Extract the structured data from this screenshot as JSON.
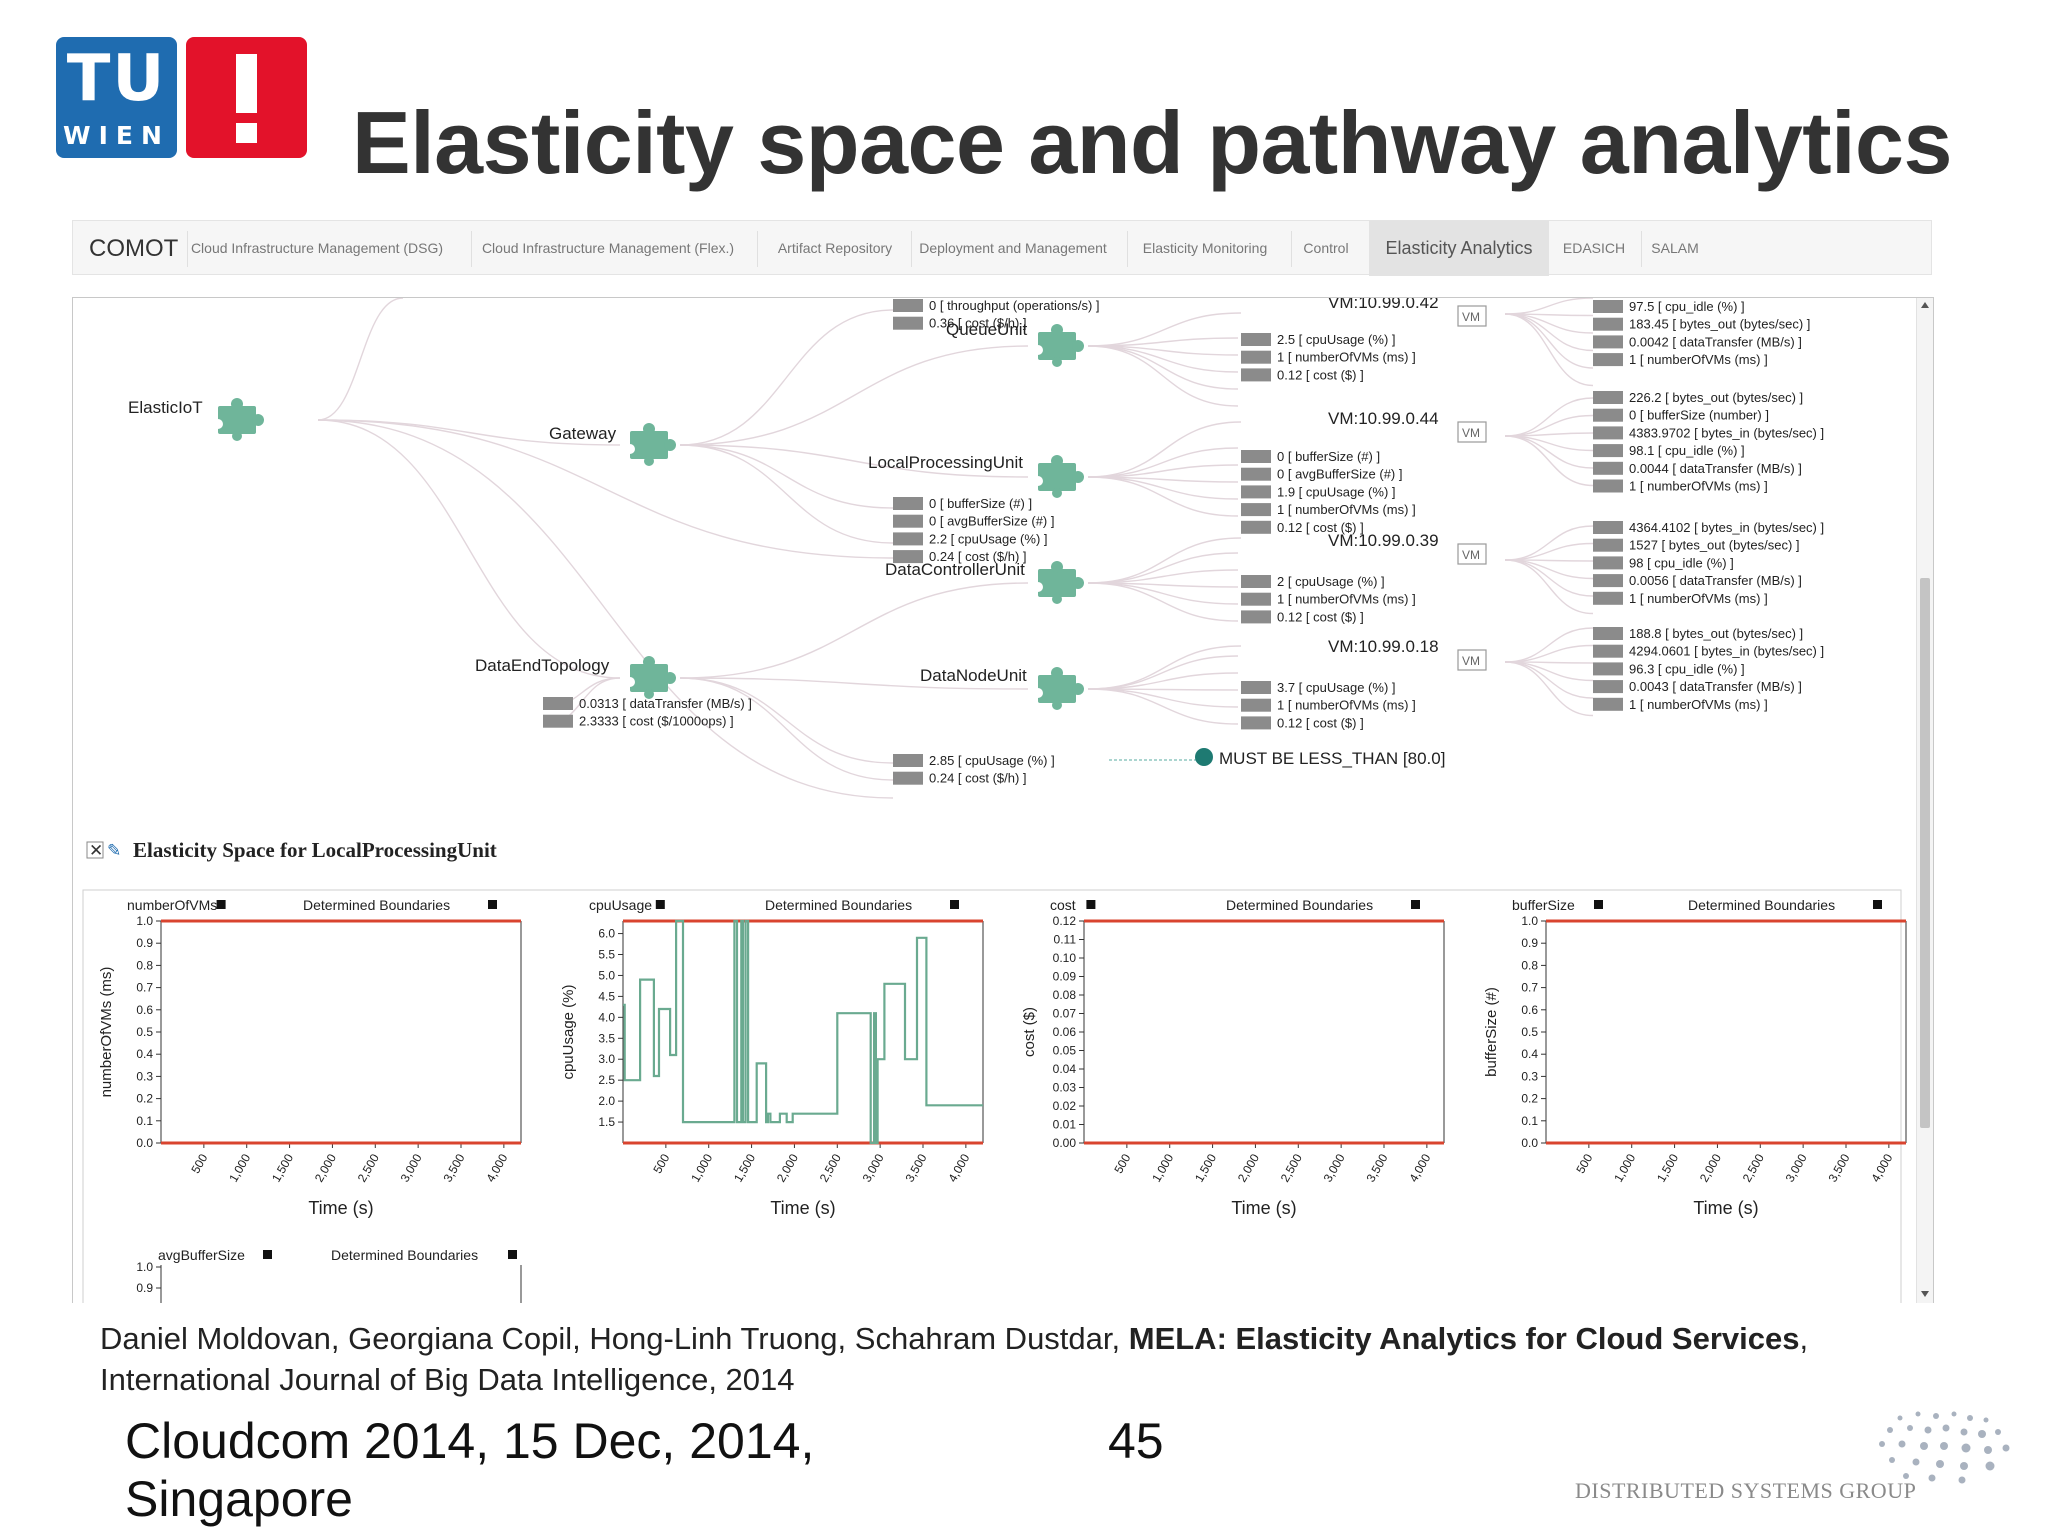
{
  "logo": {
    "tu": "TU",
    "wien": "WIEN",
    "bang": "!"
  },
  "slide_title": "Elasticity space and pathway analytics",
  "nav": {
    "brand": "COMOT",
    "tabs": [
      {
        "label": "Cloud Infrastructure Management (DSG)",
        "active": false
      },
      {
        "label": "Cloud Infrastructure Management (Flex.)",
        "active": false
      },
      {
        "label": "Artifact Repository",
        "active": false
      },
      {
        "label": "Deployment and Management",
        "active": false
      },
      {
        "label": "Elasticity Monitoring",
        "active": false
      },
      {
        "label": "Control",
        "active": false
      },
      {
        "label": "Elasticity Analytics",
        "active": true
      },
      {
        "label": "EDASICH",
        "active": false
      },
      {
        "label": "SALAM",
        "active": false
      }
    ]
  },
  "tree": {
    "nodes": {
      "elasticiot": "ElasticIoT",
      "gateway": "Gateway",
      "dataendtopology": "DataEndTopology",
      "queueunit": "QueueUnit",
      "localprocessingunit": "LocalProcessingUnit",
      "datacontrollerunit": "DataControllerUnit",
      "datanodeunit": "DataNodeUnit"
    },
    "vm_badge": "VM",
    "vms": [
      "VM:10.99.0.42",
      "VM:10.99.0.44",
      "VM:10.99.0.39",
      "VM:10.99.0.18"
    ],
    "metrics": {
      "gateway_top": [
        "0 [ throughput (operations/s) ]",
        "0.36 [ cost ($/h) ]"
      ],
      "local": [
        "0 [ bufferSize (#) ]",
        "0 [ avgBufferSize (#) ]",
        "2.2 [ cpuUsage (%) ]",
        "0.24 [ cost ($/h) ]"
      ],
      "dataend": [
        "0.0313 [ dataTransfer (MB/s) ]",
        "2.3333 [ cost ($/1000ops) ]"
      ],
      "datanode": [
        "2.85 [ cpuUsage (%) ]",
        "0.24 [ cost ($/h) ]"
      ],
      "queue_vm": [
        "2.5 [ cpuUsage (%) ]",
        "1 [ numberOfVMs (ms) ]",
        "0.12 [ cost ($) ]"
      ],
      "local_vm": [
        "0 [ bufferSize (#) ]",
        "0 [ avgBufferSize (#) ]",
        "1.9 [ cpuUsage (%) ]",
        "1 [ numberOfVMs (ms) ]",
        "0.12 [ cost ($) ]"
      ],
      "dc_vm": [
        "2 [ cpuUsage (%) ]",
        "1 [ numberOfVMs (ms) ]",
        "0.12 [ cost ($) ]"
      ],
      "dn_vm": [
        "3.7 [ cpuUsage (%) ]",
        "1 [ numberOfVMs (ms) ]",
        "0.12 [ cost ($) ]"
      ],
      "vm42": [
        "97.5 [ cpu_idle (%) ]",
        "183.45 [ bytes_out (bytes/sec) ]",
        "0.0042 [ dataTransfer (MB/s) ]",
        "1 [ numberOfVMs (ms) ]"
      ],
      "vm44": [
        "226.2 [ bytes_out (bytes/sec) ]",
        "0 [ bufferSize (number) ]",
        "4383.9702 [ bytes_in (bytes/sec) ]",
        "98.1 [ cpu_idle (%) ]",
        "0.0044 [ dataTransfer (MB/s) ]",
        "1 [ numberOfVMs (ms) ]"
      ],
      "vm39": [
        "4364.4102 [ bytes_in (bytes/sec) ]",
        "1527 [ bytes_out (bytes/sec) ]",
        "98 [ cpu_idle (%) ]",
        "0.0056 [ dataTransfer (MB/s) ]",
        "1 [ numberOfVMs (ms) ]"
      ],
      "vm18": [
        "188.8 [ bytes_out (bytes/sec) ]",
        "4294.0601 [ bytes_in (bytes/sec) ]",
        "96.3 [ cpu_idle (%) ]",
        "0.0043 [ dataTransfer (MB/s) ]",
        "1 [ numberOfVMs (ms) ]"
      ]
    },
    "requirement": "MUST BE LESS_THAN [80.0]"
  },
  "space": {
    "close_icon": "✕",
    "edit_icon": "✎",
    "title": "Elasticity Space for LocalProcessingUnit",
    "boundaries_label": "Determined Boundaries"
  },
  "chart_data": [
    {
      "type": "line",
      "name": "numberOfVMs",
      "ylabel": "numberOfVMs (ms)",
      "xlabel": "Time (s)",
      "ylim": [
        0,
        1.0
      ],
      "yticks": [
        "0.0",
        "0.1",
        "0.2",
        "0.3",
        "0.4",
        "0.5",
        "0.6",
        "0.7",
        "0.8",
        "0.9",
        "1.0"
      ],
      "xticks": [
        "500",
        "1,000",
        "1,500",
        "2,000",
        "2,500",
        "3,000",
        "3,500",
        "4,000"
      ],
      "upper_boundary": 1.0,
      "lower_boundary": 0.0,
      "x": [],
      "y": []
    },
    {
      "type": "line",
      "name": "cpuUsage",
      "ylabel": "cpuUsage (%)",
      "xlabel": "Time (s)",
      "ylim": [
        1.0,
        6.3
      ],
      "yticks": [
        "1.5",
        "2.0",
        "2.5",
        "3.0",
        "3.5",
        "4.0",
        "4.5",
        "5.0",
        "5.5",
        "6.0"
      ],
      "xticks": [
        "500",
        "1,000",
        "1,500",
        "2,000",
        "2,500",
        "3,000",
        "3,500",
        "4,000"
      ],
      "upper_boundary": 6.3,
      "lower_boundary": 1.0,
      "x": [
        0,
        20,
        20,
        200,
        200,
        360,
        360,
        420,
        420,
        550,
        550,
        620,
        620,
        700,
        700,
        740,
        740,
        1300,
        1300,
        1330,
        1330,
        1380,
        1380,
        1400,
        1400,
        1430,
        1430,
        1460,
        1460,
        1560,
        1560,
        1670,
        1670,
        1690,
        1690,
        1720,
        1720,
        1830,
        1830,
        1910,
        1910,
        1980,
        1980,
        2030,
        2030,
        2110,
        2110,
        2500,
        2500,
        2890,
        2890,
        2930,
        2930,
        2950,
        2950,
        2970,
        2970,
        3000,
        3000,
        3050,
        3050,
        3290,
        3290,
        3430,
        3430,
        3540,
        3540,
        3680,
        3680,
        3800,
        3800,
        3880,
        3880,
        4200
      ],
      "y": [
        4.3,
        4.3,
        2.5,
        2.5,
        4.9,
        4.9,
        2.6,
        2.6,
        4.2,
        4.2,
        3.1,
        3.1,
        6.3,
        6.3,
        1.5,
        1.5,
        1.5,
        1.5,
        6.3,
        6.3,
        1.5,
        1.5,
        6.3,
        6.3,
        1.5,
        1.5,
        6.3,
        6.3,
        1.5,
        1.5,
        2.9,
        2.9,
        1.5,
        1.5,
        1.7,
        1.7,
        1.5,
        1.5,
        1.7,
        1.7,
        1.5,
        1.5,
        1.7,
        1.7,
        1.7,
        1.7,
        1.7,
        1.7,
        4.1,
        4.1,
        1.0,
        1.0,
        4.1,
        4.1,
        1.0,
        1.0,
        3.0,
        3.0,
        3.0,
        3.0,
        4.8,
        4.8,
        3.0,
        3.0,
        5.9,
        5.9,
        1.9,
        1.9,
        1.9,
        1.9,
        1.9,
        1.9,
        1.9,
        1.9
      ]
    },
    {
      "type": "line",
      "name": "cost",
      "ylabel": "cost ($)",
      "xlabel": "Time (s)",
      "ylim": [
        0,
        0.12
      ],
      "yticks": [
        "0.00",
        "0.01",
        "0.02",
        "0.03",
        "0.04",
        "0.05",
        "0.06",
        "0.07",
        "0.08",
        "0.09",
        "0.10",
        "0.11",
        "0.12"
      ],
      "xticks": [
        "500",
        "1,000",
        "1,500",
        "2,000",
        "2,500",
        "3,000",
        "3,500",
        "4,000"
      ],
      "upper_boundary": 0.12,
      "lower_boundary": 0.0,
      "x": [],
      "y": []
    },
    {
      "type": "line",
      "name": "bufferSize",
      "ylabel": "bufferSize (#)",
      "xlabel": "Time (s)",
      "ylim": [
        0,
        1.0
      ],
      "yticks": [
        "0.0",
        "0.1",
        "0.2",
        "0.3",
        "0.4",
        "0.5",
        "0.6",
        "0.7",
        "0.8",
        "0.9",
        "1.0"
      ],
      "xticks": [
        "500",
        "1,000",
        "1,500",
        "2,000",
        "2,500",
        "3,000",
        "3,500",
        "4,000"
      ],
      "upper_boundary": 1.0,
      "lower_boundary": 0.0,
      "x": [],
      "y": []
    },
    {
      "type": "line",
      "name": "avgBufferSize",
      "ylabel": "",
      "xlabel": "",
      "yticks": [
        "0.9",
        "1.0"
      ],
      "x": [],
      "y": []
    }
  ],
  "citation": {
    "authors": "Daniel Moldovan, Georgiana Copil, Hong-Linh Truong, Schahram Dustdar, ",
    "paper": "MELA: Elasticity Analytics for Cloud Services",
    "comma": ",",
    "venue": "International Journal of Big Data Intelligence, 2014"
  },
  "footer": {
    "event_line1": "Cloudcom 2014, 15 Dec, 2014,",
    "event_line2": "Singapore",
    "page_number": "45",
    "group": "DISTRIBUTED SYSTEMS GROUP"
  },
  "colors": {
    "accent_blue": "#1f6cb0",
    "accent_red": "#e3122a",
    "node_green": "#6fb59a",
    "series_green": "#6aaa90",
    "boundary_red": "#d9442f",
    "requirement_dot": "#1e7a72"
  }
}
